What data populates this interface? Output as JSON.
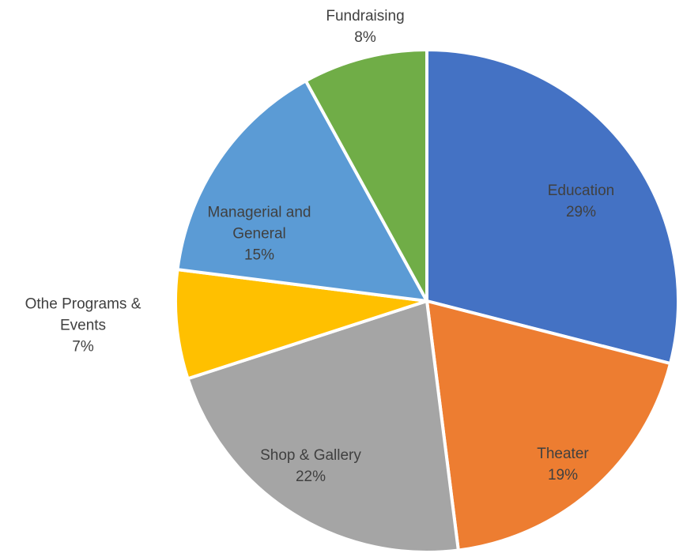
{
  "chart_data": {
    "type": "pie",
    "categories": [
      "Education",
      "Theater",
      "Shop & Gallery",
      "Othe Programs & Events",
      "Managerial and General",
      "Fundraising"
    ],
    "values": [
      29,
      19,
      22,
      7,
      15,
      8
    ],
    "value_labels": [
      "29%",
      "19%",
      "22%",
      "7%",
      "15%",
      "8%"
    ],
    "colors": [
      "#4472c4",
      "#ed7d31",
      "#a5a5a5",
      "#ffc000",
      "#5b9bd5",
      "#70ad47"
    ]
  }
}
